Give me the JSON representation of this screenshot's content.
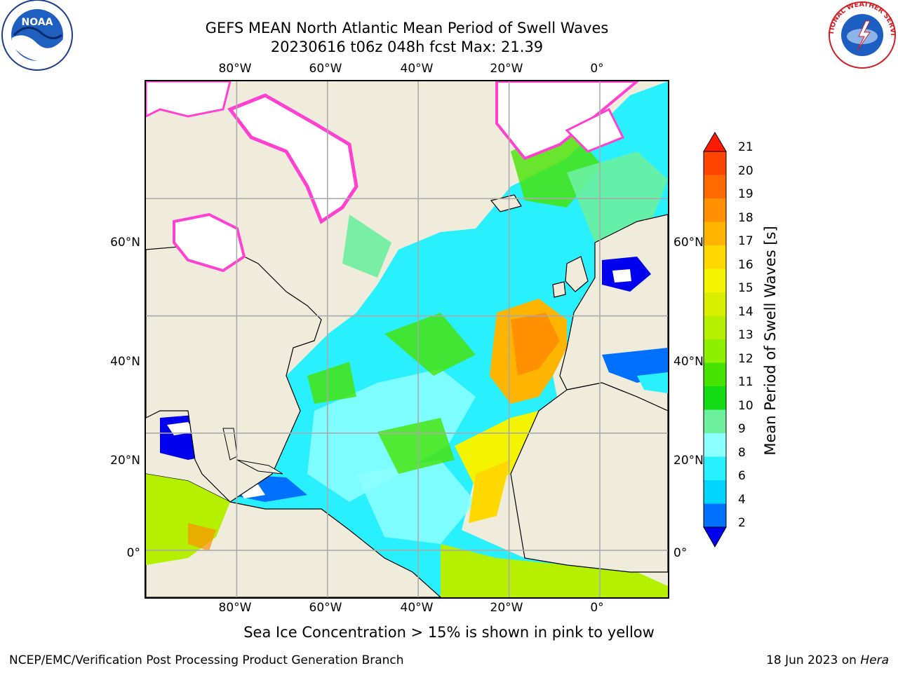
{
  "title": {
    "line1": "GEFS MEAN North Atlantic Mean Period of Swell Waves",
    "line2": "20230616 t06z 048h fcst   Max: 21.39"
  },
  "axes": {
    "lon_labels": [
      "80°W",
      "60°W",
      "40°W",
      "20°W",
      "0°"
    ],
    "lat_labels": [
      "60°N",
      "40°N",
      "20°N",
      "0°"
    ],
    "lon_ticks": [
      -80,
      -60,
      -40,
      -20,
      0
    ],
    "lat_ticks": [
      60,
      40,
      20,
      0
    ],
    "lon_range": [
      -100,
      15
    ],
    "lat_range": [
      -8,
      80
    ],
    "gridlines": true
  },
  "colorbar": {
    "label": "Mean Period of Swell Waves [s]",
    "ticks": [
      "21",
      "20",
      "19",
      "18",
      "17",
      "16",
      "15",
      "14",
      "13",
      "12",
      "11",
      "10",
      "9",
      "8",
      "6",
      "4",
      "2"
    ],
    "colors": [
      "#ff2000",
      "#ff4400",
      "#ff6a00",
      "#ff9000",
      "#ffb400",
      "#ffd800",
      "#f4f400",
      "#d8f000",
      "#b4f000",
      "#8cf000",
      "#46e400",
      "#14dc14",
      "#6cf0a0",
      "#8cffff",
      "#28f0ff",
      "#00d4ff",
      "#0070ff"
    ],
    "extend_low_color": "#0000ee",
    "extend_high_color": "#ff1a00"
  },
  "logos": {
    "noaa": "NOAA",
    "nws": "NATIONAL WEATHER SERVICE"
  },
  "footnote": "Sea Ice Concentration > 15% is shown in pink to yellow",
  "footer": {
    "left": "NCEP/EMC/Verification Post Processing Product Generation Branch",
    "right_prefix": "18 Jun 2023 on ",
    "right_host": "Hera"
  }
}
